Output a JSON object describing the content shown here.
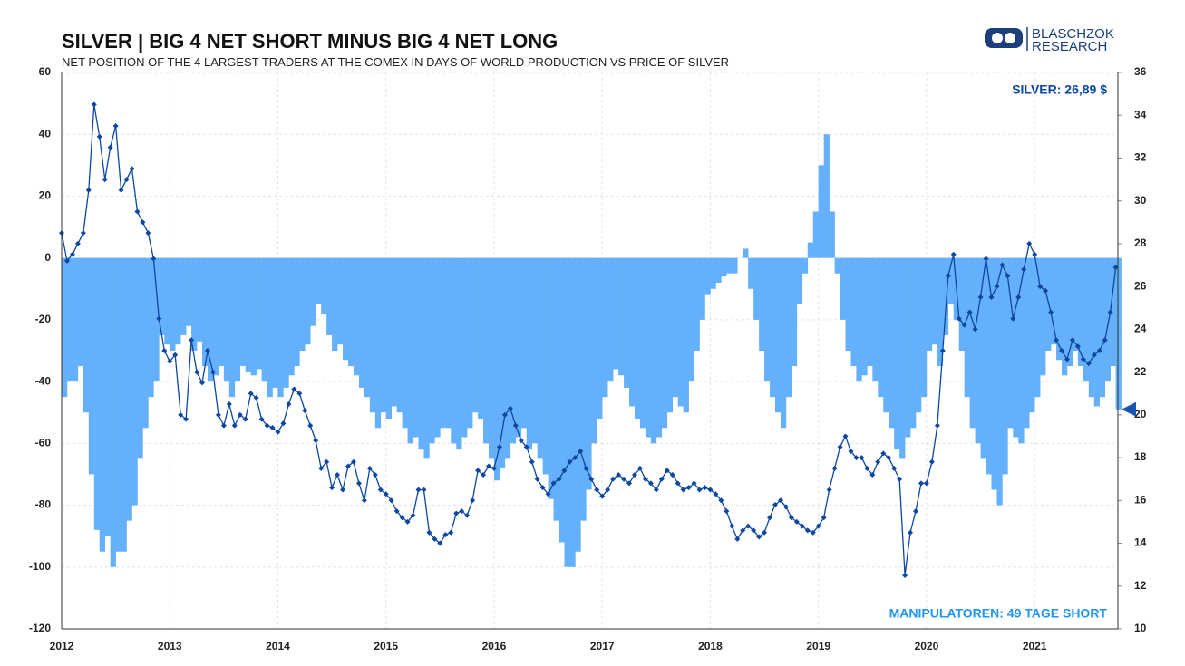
{
  "chart_data": {
    "type": "combo",
    "title": "SILVER | BIG 4 NET SHORT MINUS BIG 4 NET LONG",
    "subtitle": "NET POSITION OF THE 4 LARGEST TRADERS AT THE COMEX IN DAYS OF WORLD PRODUCTION VS PRICE OF SILVER",
    "logo": [
      "BLASCHZOK",
      "RESEARCH"
    ],
    "annotations": [
      {
        "text": "SILVER: 26,89 $",
        "color": "#0d47a1"
      },
      {
        "text": "MANIPULATOREN: 49 TAGE SHORT",
        "color": "#2196f3"
      }
    ],
    "x": [
      2012,
      2012.05,
      2012.1,
      2012.15,
      2012.2,
      2012.25,
      2012.3,
      2012.35,
      2012.4,
      2012.45,
      2012.5,
      2012.55,
      2012.6,
      2012.65,
      2012.7,
      2012.75,
      2012.8,
      2012.85,
      2012.9,
      2012.95,
      2013,
      2013.05,
      2013.1,
      2013.15,
      2013.2,
      2013.25,
      2013.3,
      2013.35,
      2013.4,
      2013.45,
      2013.5,
      2013.55,
      2013.6,
      2013.65,
      2013.7,
      2013.75,
      2013.8,
      2013.85,
      2013.9,
      2013.95,
      2014,
      2014.05,
      2014.1,
      2014.15,
      2014.2,
      2014.25,
      2014.3,
      2014.35,
      2014.4,
      2014.45,
      2014.5,
      2014.55,
      2014.6,
      2014.65,
      2014.7,
      2014.75,
      2014.8,
      2014.85,
      2014.9,
      2014.95,
      2015,
      2015.05,
      2015.1,
      2015.15,
      2015.2,
      2015.25,
      2015.3,
      2015.35,
      2015.4,
      2015.45,
      2015.5,
      2015.55,
      2015.6,
      2015.65,
      2015.7,
      2015.75,
      2015.8,
      2015.85,
      2015.9,
      2015.95,
      2016,
      2016.05,
      2016.1,
      2016.15,
      2016.2,
      2016.25,
      2016.3,
      2016.35,
      2016.4,
      2016.45,
      2016.5,
      2016.55,
      2016.6,
      2016.65,
      2016.7,
      2016.75,
      2016.8,
      2016.85,
      2016.9,
      2016.95,
      2017,
      2017.05,
      2017.1,
      2017.15,
      2017.2,
      2017.25,
      2017.3,
      2017.35,
      2017.4,
      2017.45,
      2017.5,
      2017.55,
      2017.6,
      2017.65,
      2017.7,
      2017.75,
      2017.8,
      2017.85,
      2017.9,
      2017.95,
      2018,
      2018.05,
      2018.1,
      2018.15,
      2018.2,
      2018.25,
      2018.3,
      2018.35,
      2018.4,
      2018.45,
      2018.5,
      2018.55,
      2018.6,
      2018.65,
      2018.7,
      2018.75,
      2018.8,
      2018.85,
      2018.9,
      2018.95,
      2019,
      2019.05,
      2019.1,
      2019.15,
      2019.2,
      2019.25,
      2019.3,
      2019.35,
      2019.4,
      2019.45,
      2019.5,
      2019.55,
      2019.6,
      2019.65,
      2019.7,
      2019.75,
      2019.8,
      2019.85,
      2019.9,
      2019.95,
      2020,
      2020.05,
      2020.1,
      2020.15,
      2020.2,
      2020.25,
      2020.3,
      2020.35,
      2020.4,
      2020.45,
      2020.5,
      2020.55,
      2020.6,
      2020.65,
      2020.7,
      2020.75,
      2020.8,
      2020.85,
      2020.9,
      2020.95,
      2021,
      2021.05,
      2021.1,
      2021.15,
      2021.2,
      2021.25,
      2021.3,
      2021.35,
      2021.4,
      2021.45,
      2021.5,
      2021.55,
      2021.6,
      2021.65,
      2021.7,
      2021.75
    ],
    "series": [
      {
        "type": "bar",
        "color": "#64b0fb",
        "values": [
          -45,
          -40,
          -40,
          -35,
          -50,
          -70,
          -88,
          -95,
          -90,
          -100,
          -95,
          -95,
          -85,
          -80,
          -65,
          -55,
          -45,
          -40,
          -25,
          -28,
          -30,
          -28,
          -25,
          -22,
          -30,
          -27,
          -35,
          -40,
          -38,
          -35,
          -40,
          -45,
          -40,
          -35,
          -37,
          -38,
          -36,
          -40,
          -45,
          -42,
          -45,
          -42,
          -38,
          -35,
          -30,
          -28,
          -22,
          -15,
          -18,
          -25,
          -30,
          -28,
          -33,
          -35,
          -38,
          -42,
          -45,
          -50,
          -55,
          -50,
          -52,
          -48,
          -50,
          -55,
          -60,
          -58,
          -62,
          -65,
          -60,
          -58,
          -55,
          -55,
          -60,
          -62,
          -58,
          -55,
          -50,
          -52,
          -60,
          -65,
          -72,
          -68,
          -65,
          -60,
          -58,
          -55,
          -62,
          -60,
          -65,
          -70,
          -78,
          -85,
          -92,
          -100,
          -100,
          -95,
          -85,
          -75,
          -60,
          -52,
          -45,
          -40,
          -36,
          -38,
          -42,
          -48,
          -52,
          -55,
          -58,
          -60,
          -58,
          -55,
          -50,
          -45,
          -48,
          -50,
          -40,
          -30,
          -20,
          -12,
          -10,
          -8,
          -6,
          -5,
          -5,
          0,
          3,
          -10,
          -20,
          -30,
          -40,
          -45,
          -50,
          -55,
          -45,
          -35,
          -15,
          -5,
          5,
          15,
          30,
          40,
          15,
          -5,
          -20,
          -30,
          -35,
          -40,
          -38,
          -35,
          -40,
          -45,
          -50,
          -55,
          -62,
          -65,
          -58,
          -55,
          -50,
          -45,
          -30,
          -28,
          -35,
          -25,
          -15,
          -20,
          -30,
          -45,
          -55,
          -60,
          -65,
          -70,
          -75,
          -80,
          -70,
          -55,
          -58,
          -60,
          -55,
          -50,
          -45,
          -38,
          -30,
          -28,
          -33,
          -38,
          -35,
          -30,
          -35,
          -40,
          -45,
          -48,
          -45,
          -40,
          -35,
          -49
        ]
      },
      {
        "type": "line",
        "axis": "y2",
        "color": "#0d47a1",
        "values": [
          28.5,
          27.2,
          27.5,
          28,
          28.5,
          30.5,
          34.5,
          33,
          31,
          32.5,
          33.5,
          30.5,
          31,
          31.5,
          29.5,
          29,
          28.5,
          27.3,
          24.5,
          23,
          22.5,
          22.8,
          20,
          19.8,
          23.5,
          22,
          21.5,
          23,
          22,
          20,
          19.5,
          20.5,
          19.5,
          20,
          19.8,
          21,
          20.8,
          19.8,
          19.5,
          19.4,
          19.2,
          19.6,
          20.5,
          21.2,
          21,
          20.2,
          19.5,
          18.8,
          17.5,
          17.8,
          16.6,
          17.2,
          16.5,
          17.6,
          17.8,
          16.8,
          16,
          17.5,
          17.2,
          16.5,
          16.3,
          16,
          15.5,
          15.2,
          15,
          15.3,
          16.5,
          16.5,
          14.5,
          14.2,
          14,
          14.4,
          14.5,
          15.4,
          15.5,
          15.3,
          16,
          17.4,
          17.2,
          17.6,
          17.5,
          18.5,
          20,
          20.3,
          19.5,
          18.8,
          18.5,
          17.8,
          17,
          16.6,
          16.3,
          16.8,
          17,
          17.4,
          17.8,
          18,
          18.3,
          17.5,
          17,
          16.5,
          16.2,
          16.5,
          17,
          17.2,
          17,
          16.8,
          17.2,
          17.5,
          17,
          16.8,
          16.5,
          17,
          17.4,
          17.2,
          16.8,
          16.5,
          16.6,
          16.8,
          16.5,
          16.6,
          16.5,
          16.3,
          16,
          15.5,
          14.8,
          14.2,
          14.6,
          14.8,
          14.6,
          14.3,
          14.5,
          15.2,
          15.8,
          16,
          15.7,
          15.2,
          15,
          14.8,
          14.6,
          14.5,
          14.8,
          15.2,
          16.5,
          17.5,
          18.5,
          19,
          18.3,
          18,
          18,
          17.5,
          17.2,
          17.8,
          18.2,
          18,
          17.5,
          17,
          12.5,
          14.5,
          15.5,
          16.8,
          16.8,
          17.8,
          19.5,
          23,
          26.5,
          27.5,
          24.5,
          24.2,
          24.8,
          24,
          25.5,
          27.3,
          25.5,
          26,
          27,
          26.5,
          24.5,
          25.5,
          26.8,
          28,
          27.5,
          26,
          25.8,
          24.8,
          23.5,
          23,
          22.6,
          23.5,
          23.2,
          22.6,
          22.4,
          22.8,
          23,
          23.5,
          24.8,
          26.89
        ]
      }
    ],
    "xlim": [
      2012,
      2021.77
    ],
    "xticks": [
      2012,
      2013,
      2014,
      2015,
      2016,
      2017,
      2018,
      2019,
      2020,
      2021
    ],
    "ylim": [
      -120,
      60
    ],
    "yticks": [
      -120,
      -100,
      -80,
      -60,
      -40,
      -20,
      0,
      20,
      40,
      60
    ],
    "y2lim": [
      10,
      36
    ],
    "y2ticks": [
      10,
      12,
      14,
      16,
      18,
      20,
      22,
      24,
      26,
      28,
      30,
      32,
      34,
      36
    ],
    "grid": true
  }
}
